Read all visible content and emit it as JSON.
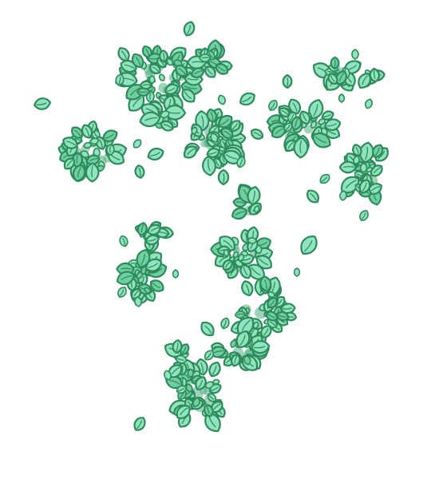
{
  "image": {
    "subject": "leaf-clusters",
    "palette": {
      "background": "#ffffff",
      "leaf_fill": "#8fe3bd",
      "leaf_fill_alt": "#6fcf9f",
      "leaf_shadow": "#4fae81",
      "leaf_stroke": "#2e8a5c",
      "vein": "#2f8f61"
    }
  }
}
